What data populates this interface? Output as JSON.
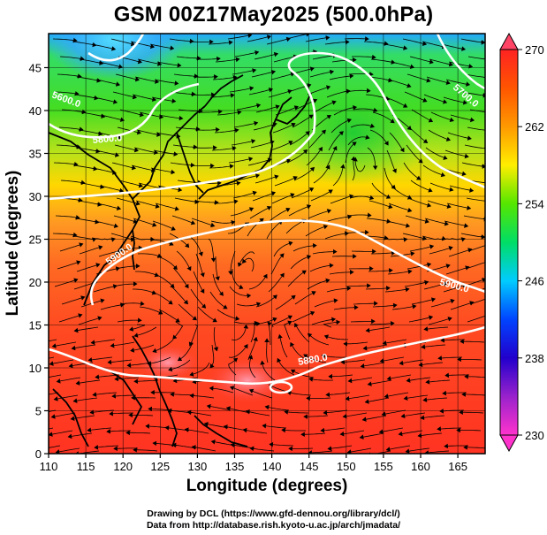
{
  "title": "GSM 00Z17May2025 (500.0hPa)",
  "x_axis": {
    "label": "Longitude (degrees)",
    "ticks": [
      "110",
      "115",
      "120",
      "125",
      "130",
      "135",
      "140",
      "145",
      "150",
      "155",
      "160",
      "165"
    ]
  },
  "y_axis": {
    "label": "Latitude  (degrees)",
    "ticks": [
      "0",
      "5",
      "10",
      "15",
      "20",
      "25",
      "30",
      "35",
      "40",
      "45"
    ]
  },
  "colorbar": {
    "ticks": [
      "230",
      "238",
      "246",
      "254",
      "262",
      "270"
    ],
    "colors": [
      "#ff33cc",
      "#2200cc",
      "#0033ff",
      "#00ccff",
      "#33dd33",
      "#66ee00",
      "#ffee00",
      "#ff9900",
      "#ff5500",
      "#ff3322"
    ]
  },
  "contour_labels": {
    "c5900_west": "5900.0",
    "c5900_east": "5900.0",
    "c5880_south": "5880.0",
    "c5600": "5600.0",
    "c5700_east": "5700.0",
    "c5800_east": "5800.0"
  },
  "footer": {
    "line1": "Drawing by DCL (https://www.gfd-dennou.org/library/dcl/)",
    "line2": "Data from http://database.rish.kyoto-u.ac.jp/arch/jmadata/"
  }
}
